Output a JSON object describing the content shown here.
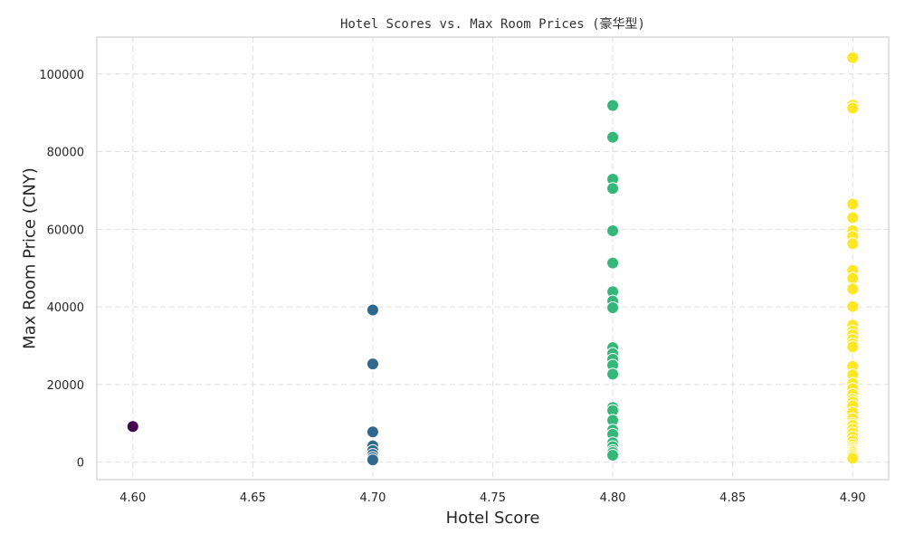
{
  "chart_data": {
    "type": "scatter",
    "title": "Hotel Scores vs. Max Room Prices (豪华型)",
    "xlabel": "Hotel Score",
    "ylabel": "Max Room Price (CNY)",
    "xlim": [
      4.585,
      4.915
    ],
    "ylim": [
      -4500,
      109500
    ],
    "x_ticks": [
      4.6,
      4.65,
      4.7,
      4.75,
      4.8,
      4.85,
      4.9
    ],
    "x_tick_labels": [
      "4.60",
      "4.65",
      "4.70",
      "4.75",
      "4.80",
      "4.85",
      "4.90"
    ],
    "y_ticks": [
      0,
      20000,
      40000,
      60000,
      80000,
      100000
    ],
    "y_tick_labels": [
      "0",
      "20000",
      "40000",
      "60000",
      "80000",
      "100000"
    ],
    "grid": true,
    "colormap": "viridis",
    "colors": {
      "4.6": "#440154",
      "4.7": "#31688e",
      "4.8": "#35b779",
      "4.9": "#fde725"
    },
    "series": [
      {
        "x": 4.6,
        "values": [
          9200
        ]
      },
      {
        "x": 4.7,
        "values": [
          39200,
          25300,
          7800,
          4200,
          3000,
          2000,
          1200,
          600
        ]
      },
      {
        "x": 4.8,
        "values": [
          91900,
          83700,
          72900,
          70500,
          59600,
          51300,
          43900,
          41500,
          39800,
          29500,
          28000,
          26500,
          25000,
          22700,
          14100,
          13300,
          10800,
          8300,
          7200,
          5000,
          4000,
          3000,
          2500,
          1800
        ]
      },
      {
        "x": 4.9,
        "values": [
          104200,
          92000,
          91200,
          66500,
          63000,
          59600,
          58100,
          56300,
          49400,
          47400,
          44600,
          40100,
          35300,
          33800,
          32800,
          31600,
          30500,
          29700,
          24700,
          22500,
          20300,
          19000,
          17500,
          16200,
          15500,
          14500,
          12800,
          11200,
          10000,
          9500,
          8500,
          7500,
          6500,
          5500,
          4500,
          3800,
          3300,
          2900,
          2500,
          2000,
          1500,
          1000
        ]
      }
    ]
  }
}
